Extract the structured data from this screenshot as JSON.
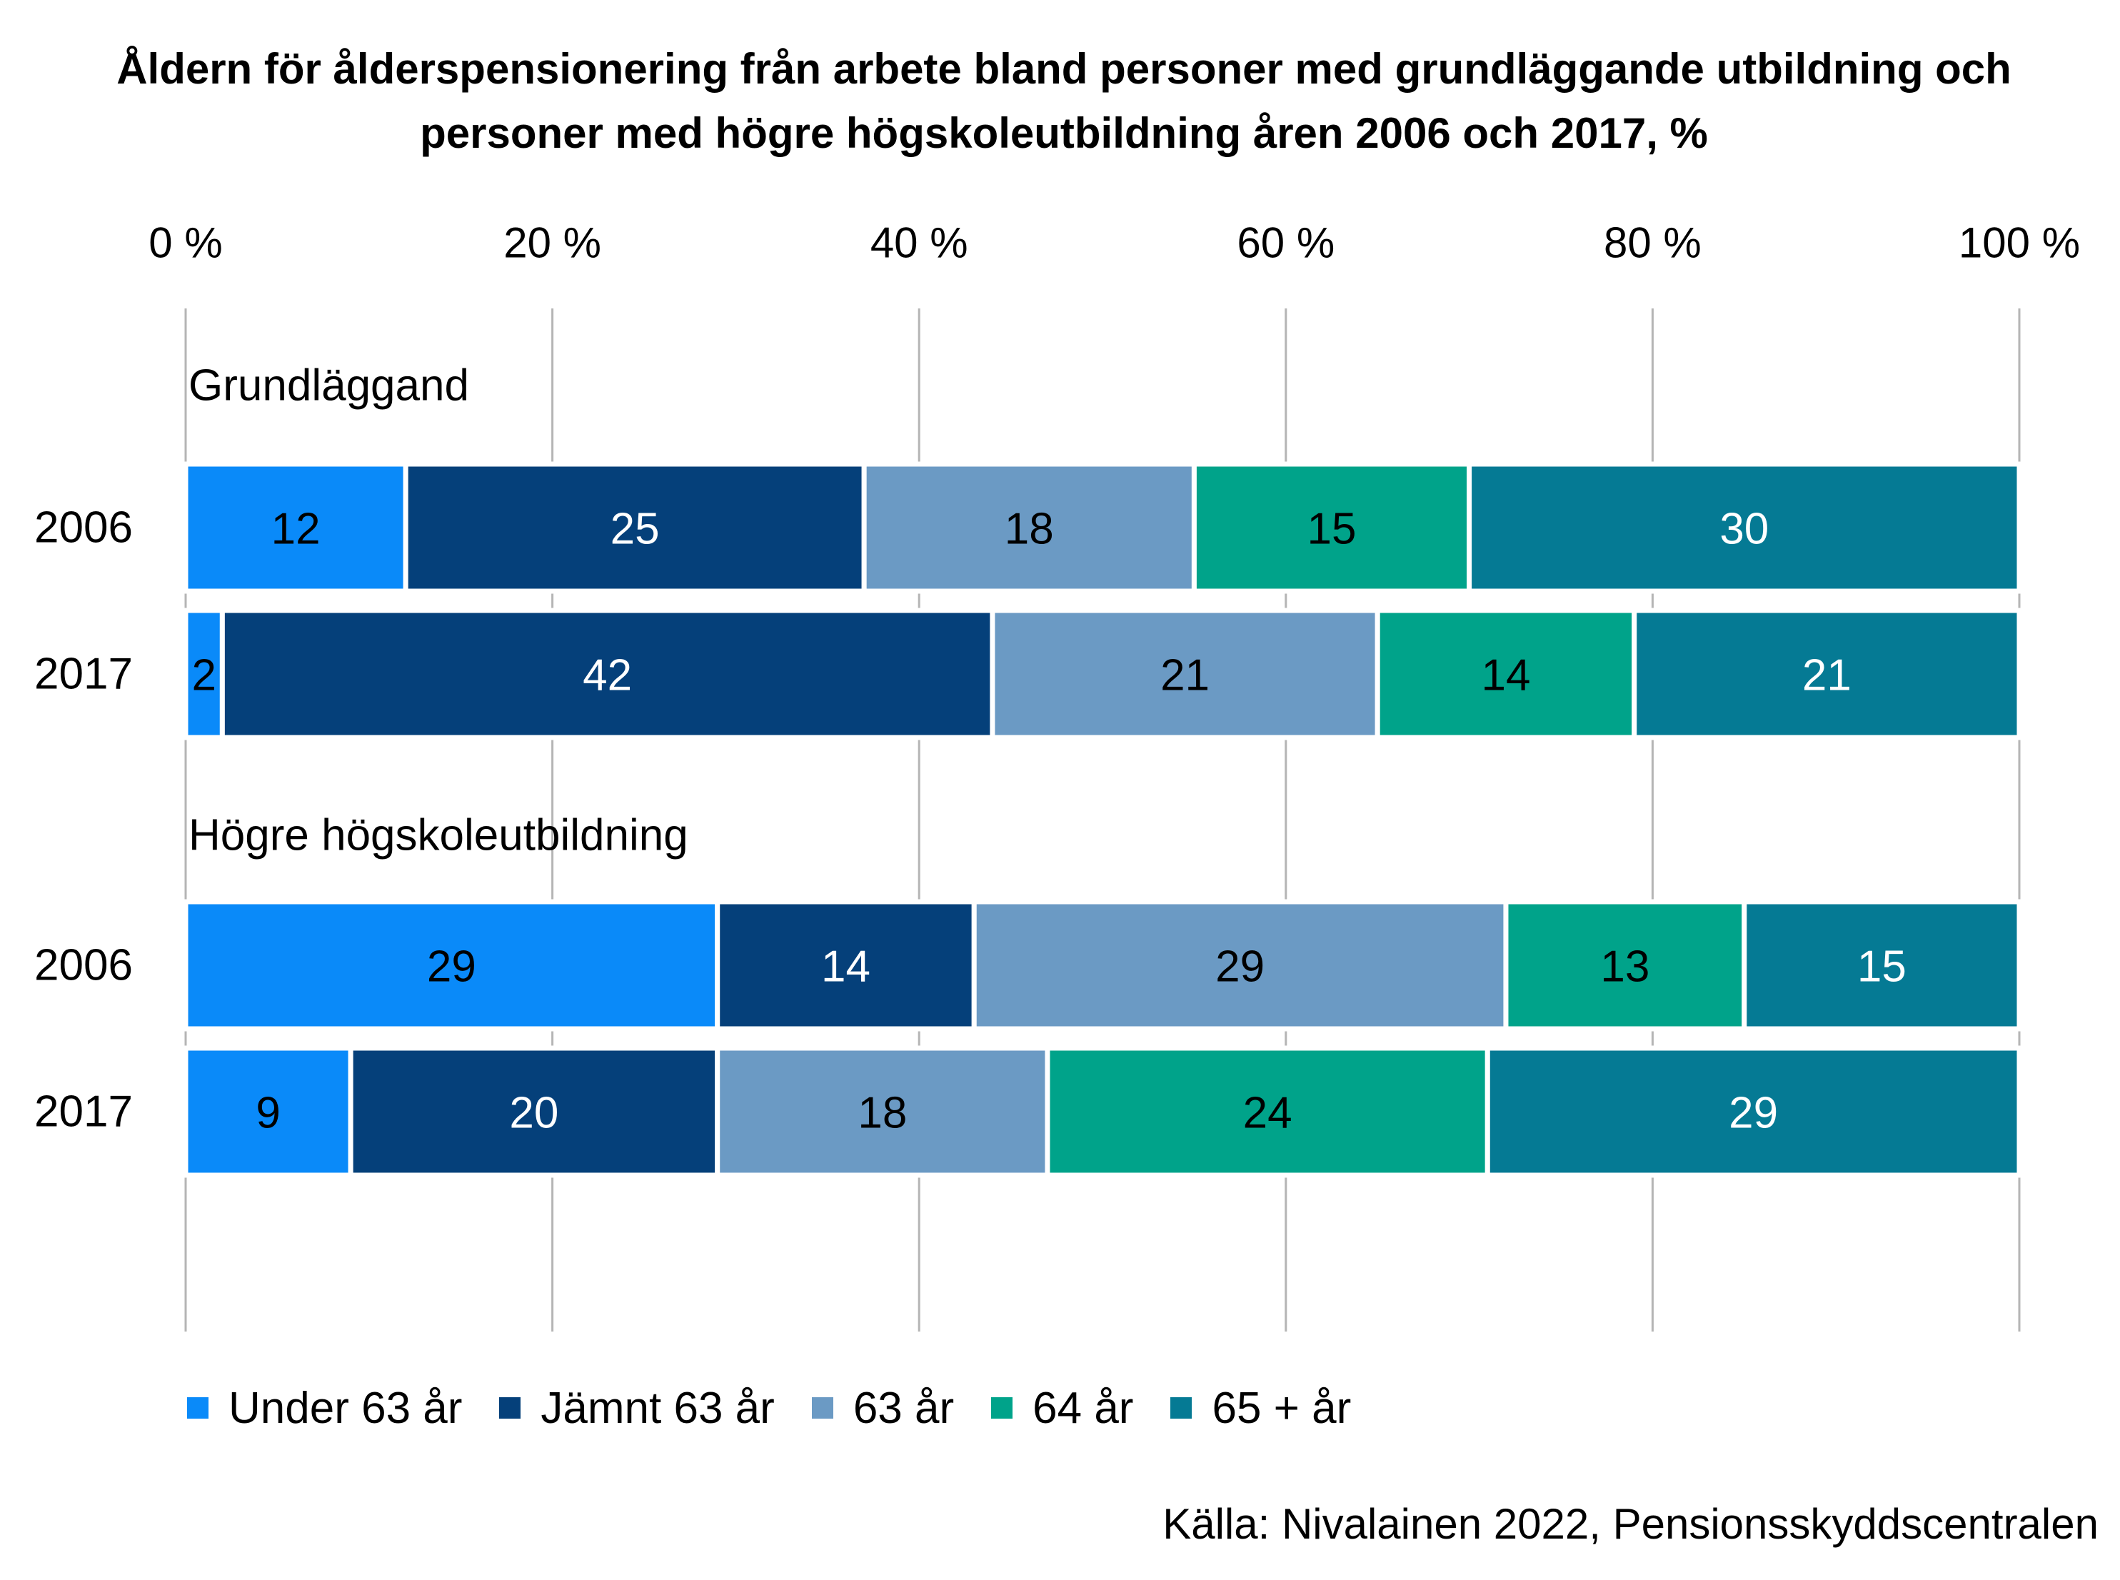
{
  "chart_data": {
    "type": "bar",
    "orientation": "horizontal",
    "stacked": true,
    "title_lines": [
      "Åldern för ålderspensionering från arbete bland personer med grundläggande utbildning och",
      "personer med högre högskoleutbildning åren 2006 och 2017, %"
    ],
    "x_ticks": [
      "0 %",
      "20 %",
      "40 %",
      "60 %",
      "80 %",
      "100 %"
    ],
    "xlim": [
      0,
      100
    ],
    "axis_position": "top",
    "grid": true,
    "groups": [
      {
        "label": "Grundläggand",
        "categories": [
          "2006",
          "2017"
        ]
      },
      {
        "label": "Högre högskoleutbildning",
        "categories": [
          "2006",
          "2017"
        ]
      }
    ],
    "series": [
      {
        "name": "Under 63 år",
        "color": "#0a8af9",
        "label_color": "#000000",
        "values": [
          12,
          2,
          29,
          9
        ]
      },
      {
        "name": "Jämnt 63 år",
        "color": "#05407a",
        "label_color": "#ffffff",
        "values": [
          25,
          42,
          14,
          20
        ]
      },
      {
        "name": "63 år",
        "color": "#6b9ac4",
        "label_color": "#000000",
        "values": [
          18,
          21,
          29,
          18
        ]
      },
      {
        "name": "64 år",
        "color": "#00a38a",
        "label_color": "#000000",
        "values": [
          15,
          14,
          13,
          24
        ]
      },
      {
        "name": "65 + år",
        "color": "#057a94",
        "label_color": "#ffffff",
        "values": [
          30,
          21,
          15,
          29
        ]
      }
    ],
    "legend_position": "bottom",
    "source": "Källa: Nivalainen 2022, Pensionsskyddscentralen"
  }
}
